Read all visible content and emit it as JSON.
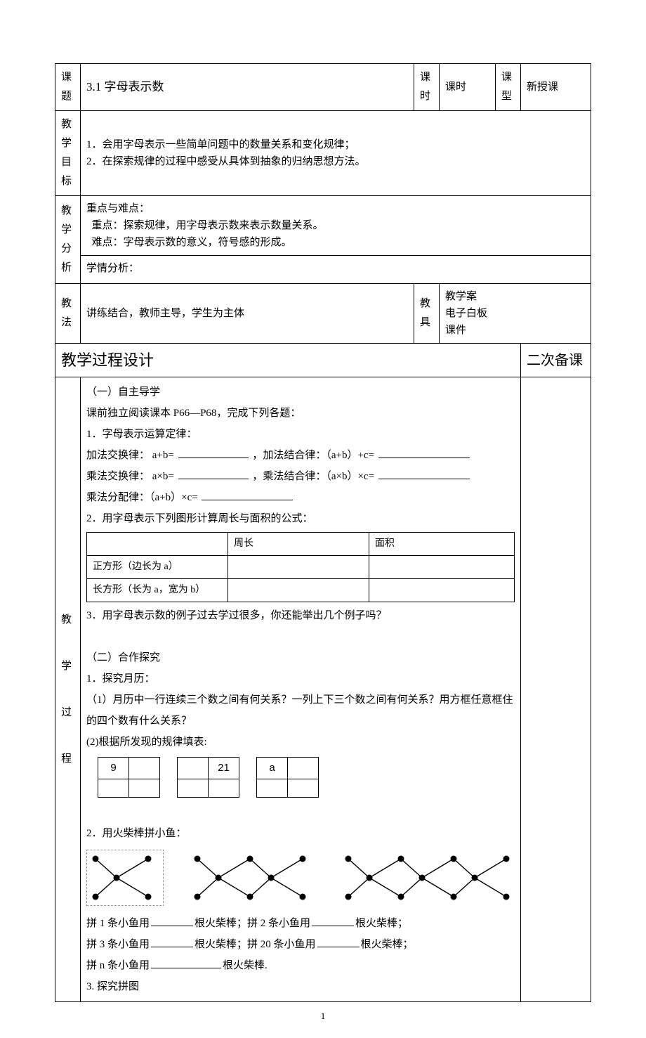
{
  "header": {
    "col_topic_label": "课\n题",
    "col_title": "3.1  字母表示数",
    "col_period_label": "课\n时",
    "col_period_value": "课时",
    "col_type_label": "课\n型",
    "col_type_value": "新授课",
    "objectives_label": "教\n学\n目\n标",
    "objective_1": "1．会用字母表示一些简单问题中的数量关系和变化规律；",
    "objective_2": "2．在探索规律的过程中感受从具体到抽象的归纳思想方法。",
    "analysis_label": "教\n学\n分\n析",
    "key_points_title": "重点与难点：",
    "key_point": "  重点：探索规律，用字母表示数来表示数量关系。",
    "difficulty": "  难点：字母表示数的意义，符号感的形成。",
    "student_analysis": "学情分析：",
    "method_label": "教\n法",
    "method_value": "讲练结合，教师主导，学生为主体",
    "tools_label": "教\n具",
    "tools_1": "教学案",
    "tools_2": "电子白板",
    "tools_3": "课件",
    "process_title": "教学过程设计",
    "notes_title": "二次备课",
    "process_side_label": "教\n\n学\n\n过\n\n程"
  },
  "content": {
    "s1_title": "（一）自主导学",
    "s1_pre": "课前独立阅读课本 P66—P68，完成下列各题：",
    "s1_q1": "1．字母表示运算定律：",
    "s1_q1a": "加法交换律：  a+b=",
    "s1_q1b": "，加法结合律：（a+b）+c=",
    "s1_q1c": "乘法交换律：  a×b=",
    "s1_q1d": "，乘法结合律：（a×b）×c=",
    "s1_q1e": "乘法分配律：（a+b）×c=",
    "s1_q2": "2．用字母表示下列图形计算周长与面积的公式：",
    "t_col1": "",
    "t_col2": "周长",
    "t_col3": "面积",
    "t_row1": "正方形（边长为 a）",
    "t_row2": "长方形（长为 a，宽为 b）",
    "s1_q3": "3．用字母表示数的例子过去学过很多，你还能举出几个例子吗？",
    "s2_title": "（二）合作探究",
    "s2_q1": "1．探究月历：",
    "s2_q1a": "（1）月历中一行连续三个数之间有何关系？一列上下三个数之间有何关系？用方框任意框住的四个数有什么关系？",
    "s2_q1b": "(2)根据所发现的规律填表:",
    "grid_values": [
      "9",
      "21",
      "a"
    ],
    "s2_q2": "2．用火柴棒拼小鱼：",
    "fish": {
      "node_radius": 4.5,
      "line_width": 1.4,
      "color": "#000000"
    },
    "s2_fill_1a": "拼 1 条小鱼用",
    "s2_fill_1b": "根火柴棒；拼 2 条小鱼用",
    "s2_fill_1c": "根火柴棒；",
    "s2_fill_2a": "拼 3 条小鱼用",
    "s2_fill_2b": "根火柴棒；拼 20 条小鱼用",
    "s2_fill_2c": "根火柴棒；",
    "s2_fill_3a": "拼 n 条小鱼用",
    "s2_fill_3b": "根火柴棒.",
    "s2_q3": "3.  探究拼图"
  },
  "page_number": "1"
}
